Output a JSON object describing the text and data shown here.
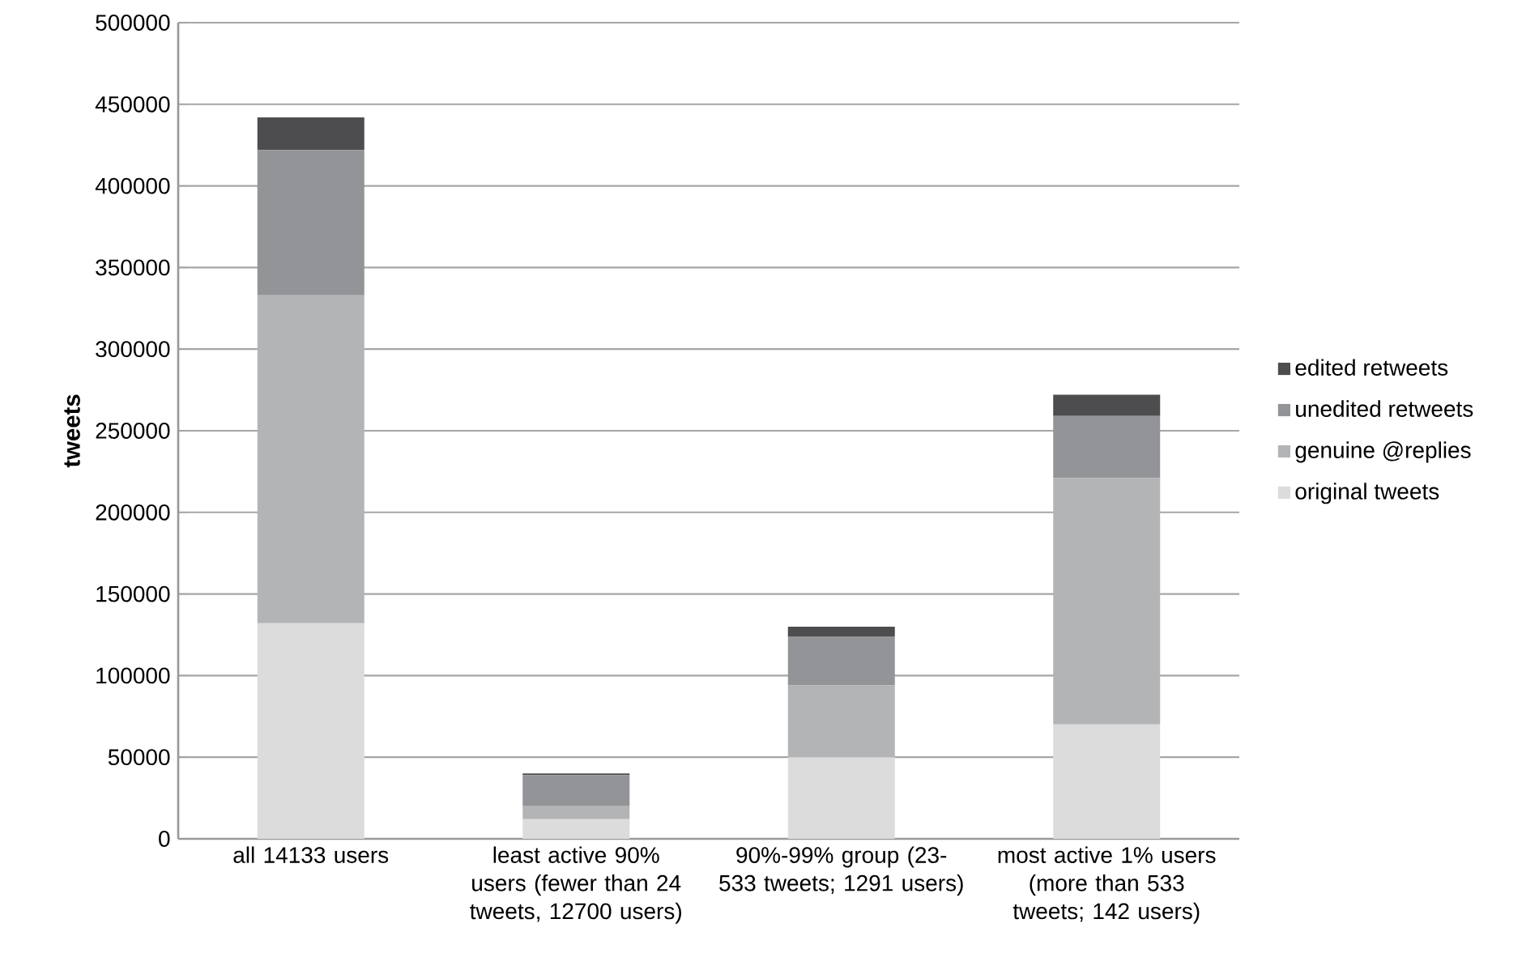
{
  "chart_data": {
    "type": "bar",
    "stacked": true,
    "ylabel": "tweets",
    "categories": [
      "all 14133 users",
      "least active 90% users (fewer than 24 tweets, 12700 users)",
      "90%-99% group (23-533 tweets; 1291 users)",
      "most active 1% users (more than 533 tweets; 142 users)"
    ],
    "series": [
      {
        "name": "original tweets",
        "color": "#dcdcdd",
        "values": [
          132000,
          12000,
          50000,
          70000
        ]
      },
      {
        "name": "genuine @replies",
        "color": "#b3b4b6",
        "values": [
          201000,
          8000,
          44000,
          151000
        ]
      },
      {
        "name": "unedited retweets",
        "color": "#939497",
        "values": [
          89000,
          19000,
          30000,
          38000
        ]
      },
      {
        "name": "edited retweets",
        "color": "#4d4d4f",
        "values": [
          20000,
          1000,
          6000,
          13000
        ]
      }
    ],
    "ylim": [
      0,
      500000
    ],
    "yticks": [
      0,
      50000,
      100000,
      150000,
      200000,
      250000,
      300000,
      350000,
      400000,
      450000,
      500000
    ],
    "grid": "y",
    "legend": "right"
  }
}
